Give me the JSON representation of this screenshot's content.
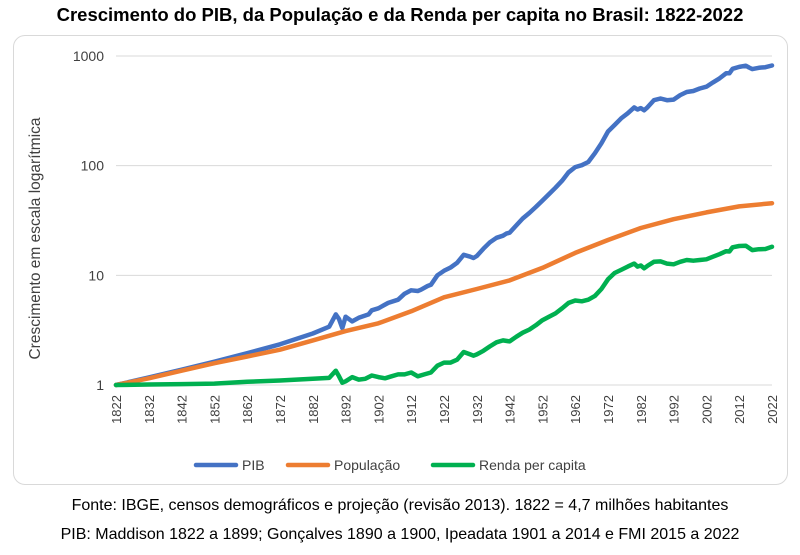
{
  "chart_data": {
    "type": "line",
    "title": "Crescimento do PIB, da População e da Renda per capita no Brasil: 1822-2022",
    "ylabel": "Crescimento em escala logarítmica",
    "xlabel": "",
    "y_scale": "log",
    "ylim": [
      1,
      1000
    ],
    "xlim": [
      1822,
      2022
    ],
    "y_ticks": [
      "1",
      "10",
      "100",
      "1000"
    ],
    "x_ticks": [
      "1822",
      "1832",
      "1842",
      "1852",
      "1862",
      "1872",
      "1882",
      "1892",
      "1902",
      "1912",
      "1922",
      "1932",
      "1942",
      "1952",
      "1962",
      "1972",
      "1982",
      "1992",
      "2002",
      "2012",
      "2022"
    ],
    "grid": "horizontal",
    "legend_position": "bottom",
    "series": [
      {
        "name": "PIB",
        "color": "#4472c4",
        "points": [
          [
            1822,
            1.0
          ],
          [
            1832,
            1.17
          ],
          [
            1842,
            1.38
          ],
          [
            1852,
            1.63
          ],
          [
            1862,
            1.95
          ],
          [
            1872,
            2.35
          ],
          [
            1882,
            2.95
          ],
          [
            1887,
            3.4
          ],
          [
            1889,
            4.4
          ],
          [
            1890,
            4.0
          ],
          [
            1891,
            3.3
          ],
          [
            1892,
            4.2
          ],
          [
            1894,
            3.8
          ],
          [
            1896,
            4.1
          ],
          [
            1899,
            4.4
          ],
          [
            1900,
            4.8
          ],
          [
            1902,
            5.0
          ],
          [
            1905,
            5.6
          ],
          [
            1908,
            6.0
          ],
          [
            1910,
            6.8
          ],
          [
            1912,
            7.3
          ],
          [
            1914,
            7.2
          ],
          [
            1915,
            7.4
          ],
          [
            1917,
            8.0
          ],
          [
            1918,
            8.2
          ],
          [
            1920,
            10.0
          ],
          [
            1922,
            11.0
          ],
          [
            1924,
            11.8
          ],
          [
            1926,
            13.0
          ],
          [
            1928,
            15.4
          ],
          [
            1930,
            14.8
          ],
          [
            1931,
            14.4
          ],
          [
            1932,
            15.0
          ],
          [
            1934,
            17.5
          ],
          [
            1936,
            20.0
          ],
          [
            1938,
            22.0
          ],
          [
            1940,
            23.0
          ],
          [
            1941,
            24.0
          ],
          [
            1942,
            24.5
          ],
          [
            1944,
            28.5
          ],
          [
            1946,
            33.0
          ],
          [
            1948,
            37.0
          ],
          [
            1950,
            42.0
          ],
          [
            1952,
            48.0
          ],
          [
            1954,
            55.0
          ],
          [
            1956,
            63.0
          ],
          [
            1958,
            73.0
          ],
          [
            1960,
            87.0
          ],
          [
            1962,
            97.0
          ],
          [
            1964,
            101.0
          ],
          [
            1966,
            108.0
          ],
          [
            1968,
            130.0
          ],
          [
            1970,
            160.0
          ],
          [
            1972,
            205.0
          ],
          [
            1974,
            235.0
          ],
          [
            1976,
            270.0
          ],
          [
            1978,
            300.0
          ],
          [
            1980,
            340.0
          ],
          [
            1981,
            325.0
          ],
          [
            1982,
            335.0
          ],
          [
            1983,
            320.0
          ],
          [
            1984,
            340.0
          ],
          [
            1986,
            395.0
          ],
          [
            1988,
            410.0
          ],
          [
            1990,
            395.0
          ],
          [
            1992,
            400.0
          ],
          [
            1994,
            440.0
          ],
          [
            1996,
            470.0
          ],
          [
            1998,
            480.0
          ],
          [
            2000,
            505.0
          ],
          [
            2002,
            525.0
          ],
          [
            2004,
            575.0
          ],
          [
            2006,
            625.0
          ],
          [
            2008,
            695.0
          ],
          [
            2009,
            695.0
          ],
          [
            2010,
            765.0
          ],
          [
            2012,
            795.0
          ],
          [
            2014,
            815.0
          ],
          [
            2015,
            785.0
          ],
          [
            2016,
            760.0
          ],
          [
            2018,
            780.0
          ],
          [
            2020,
            790.0
          ],
          [
            2022,
            820.0
          ]
        ]
      },
      {
        "name": "População",
        "color": "#ed7d31",
        "points": [
          [
            1822,
            1.0
          ],
          [
            1832,
            1.15
          ],
          [
            1842,
            1.35
          ],
          [
            1852,
            1.58
          ],
          [
            1862,
            1.82
          ],
          [
            1872,
            2.1
          ],
          [
            1882,
            2.55
          ],
          [
            1892,
            3.1
          ],
          [
            1902,
            3.65
          ],
          [
            1912,
            4.7
          ],
          [
            1922,
            6.3
          ],
          [
            1932,
            7.5
          ],
          [
            1942,
            9.0
          ],
          [
            1952,
            11.7
          ],
          [
            1962,
            16.0
          ],
          [
            1972,
            21.0
          ],
          [
            1982,
            27.0
          ],
          [
            1992,
            32.5
          ],
          [
            2002,
            37.5
          ],
          [
            2012,
            42.5
          ],
          [
            2022,
            45.5
          ]
        ]
      },
      {
        "name": "Renda per capita",
        "color": "#00b050",
        "points": [
          [
            1822,
            1.0
          ],
          [
            1832,
            1.01
          ],
          [
            1842,
            1.02
          ],
          [
            1852,
            1.03
          ],
          [
            1862,
            1.07
          ],
          [
            1872,
            1.1
          ],
          [
            1882,
            1.14
          ],
          [
            1887,
            1.16
          ],
          [
            1889,
            1.35
          ],
          [
            1890,
            1.2
          ],
          [
            1891,
            1.05
          ],
          [
            1892,
            1.08
          ],
          [
            1894,
            1.18
          ],
          [
            1896,
            1.12
          ],
          [
            1898,
            1.14
          ],
          [
            1900,
            1.22
          ],
          [
            1902,
            1.18
          ],
          [
            1904,
            1.15
          ],
          [
            1906,
            1.2
          ],
          [
            1908,
            1.25
          ],
          [
            1910,
            1.25
          ],
          [
            1912,
            1.3
          ],
          [
            1914,
            1.2
          ],
          [
            1916,
            1.25
          ],
          [
            1918,
            1.3
          ],
          [
            1920,
            1.5
          ],
          [
            1922,
            1.6
          ],
          [
            1924,
            1.6
          ],
          [
            1926,
            1.7
          ],
          [
            1928,
            2.0
          ],
          [
            1930,
            1.9
          ],
          [
            1931,
            1.85
          ],
          [
            1932,
            1.9
          ],
          [
            1934,
            2.05
          ],
          [
            1936,
            2.25
          ],
          [
            1938,
            2.45
          ],
          [
            1940,
            2.55
          ],
          [
            1942,
            2.5
          ],
          [
            1944,
            2.75
          ],
          [
            1946,
            3.0
          ],
          [
            1948,
            3.2
          ],
          [
            1950,
            3.5
          ],
          [
            1952,
            3.9
          ],
          [
            1954,
            4.2
          ],
          [
            1956,
            4.5
          ],
          [
            1958,
            5.0
          ],
          [
            1960,
            5.6
          ],
          [
            1962,
            5.9
          ],
          [
            1964,
            5.8
          ],
          [
            1966,
            6.0
          ],
          [
            1968,
            6.5
          ],
          [
            1970,
            7.5
          ],
          [
            1972,
            9.2
          ],
          [
            1974,
            10.5
          ],
          [
            1976,
            11.2
          ],
          [
            1978,
            12.0
          ],
          [
            1980,
            12.8
          ],
          [
            1981,
            12.0
          ],
          [
            1982,
            12.3
          ],
          [
            1983,
            11.6
          ],
          [
            1984,
            12.2
          ],
          [
            1986,
            13.3
          ],
          [
            1988,
            13.4
          ],
          [
            1990,
            12.8
          ],
          [
            1992,
            12.6
          ],
          [
            1994,
            13.3
          ],
          [
            1996,
            13.8
          ],
          [
            1998,
            13.6
          ],
          [
            2000,
            13.8
          ],
          [
            2002,
            14.0
          ],
          [
            2004,
            14.8
          ],
          [
            2006,
            15.6
          ],
          [
            2008,
            16.6
          ],
          [
            2009,
            16.5
          ],
          [
            2010,
            18.0
          ],
          [
            2012,
            18.5
          ],
          [
            2014,
            18.6
          ],
          [
            2015,
            17.8
          ],
          [
            2016,
            17.0
          ],
          [
            2018,
            17.3
          ],
          [
            2020,
            17.4
          ],
          [
            2022,
            18.2
          ]
        ]
      }
    ]
  },
  "source_line_1": "Fonte: IBGE, censos demográficos e projeção (revisão 2013). 1822 = 4,7 milhões habitantes",
  "source_line_2": "PIB: Maddison 1822 a 1899; Gonçalves 1890 a 1900, Ipeadata 1901 a 2014 e FMI 2015 a 2022"
}
